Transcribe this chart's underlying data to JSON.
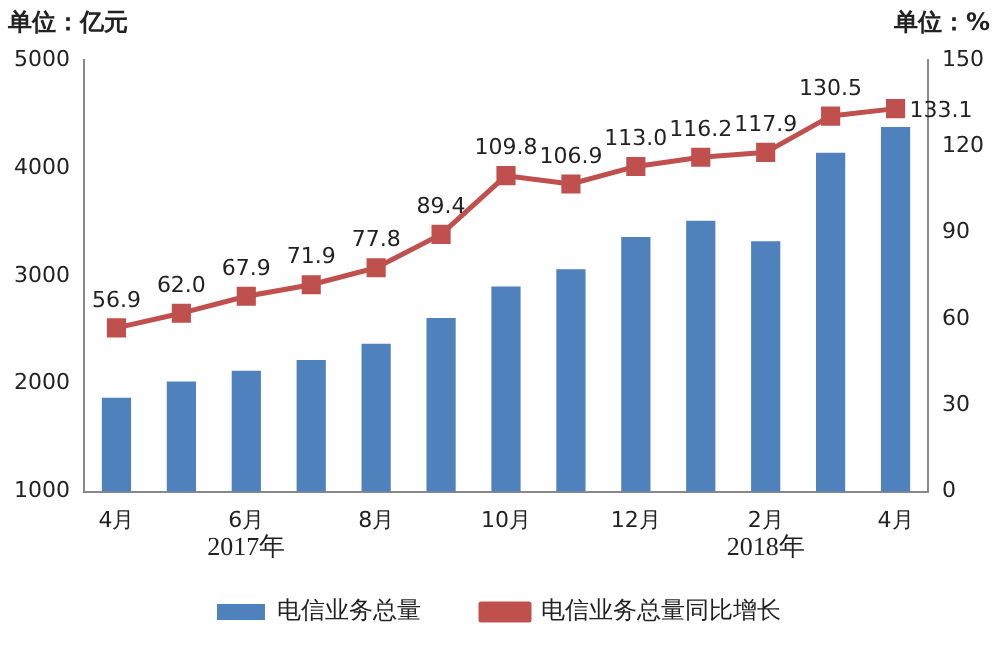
{
  "chart_data": {
    "type": "bar",
    "ylabel": "单位：亿元",
    "y2label": "单位：%",
    "categories": [
      "4月",
      null,
      "6月",
      null,
      "8月",
      null,
      "10月",
      null,
      "12月",
      null,
      "2月",
      null,
      "4月"
    ],
    "series": [
      {
        "name": "电信业务总量",
        "color": "#4f81bd",
        "values": [
          1870,
          2020,
          2120,
          2220,
          2370,
          2610,
          2900,
          3060,
          3360,
          3510,
          3320,
          4140,
          4380
        ]
      },
      {
        "name": "电信业务总量同比增长",
        "type": "line",
        "axis": "y2",
        "color": "#c0504d",
        "marker": "square",
        "values": [
          56.9,
          62.0,
          67.9,
          71.9,
          77.8,
          89.4,
          109.8,
          106.9,
          113.0,
          116.2,
          117.9,
          130.5,
          133.1
        ],
        "value_labels": [
          "56.9",
          "62.0",
          "67.9",
          "71.9",
          "77.8",
          "89.4",
          "109.8",
          "106.9",
          "113.0",
          "116.2",
          "117.9",
          "130.5",
          "133.1"
        ]
      }
    ],
    "ylim": [
      1000,
      5000
    ],
    "yticks": [
      1000,
      2000,
      3000,
      4000,
      5000
    ],
    "y2lim": [
      0,
      150
    ],
    "y2ticks": [
      0,
      30,
      60,
      90,
      120,
      150
    ],
    "annotations": [
      "2017年",
      "2018年"
    ],
    "grid": false,
    "legend": "bottom"
  }
}
